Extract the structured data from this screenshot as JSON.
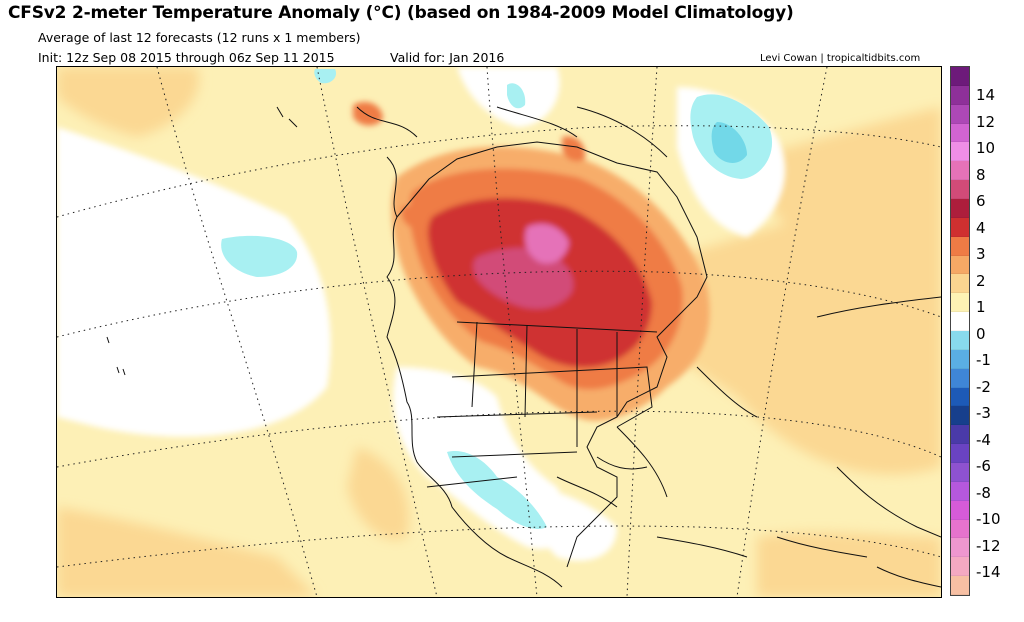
{
  "header": {
    "title": "CFSv2 2-meter Temperature Anomaly (°C) (based on 1984-2009 Model Climatology)",
    "subtitle": "Average of last 12 forecasts (12 runs x 1 members)",
    "init": "Init: 12z Sep 08 2015 through 06z Sep 11 2015",
    "valid": "Valid for: Jan 2016",
    "credit": "Levi Cowan | tropicaltidbits.com"
  },
  "map": {
    "region": "North America",
    "field": "2-meter temperature anomaly",
    "units": "°C"
  },
  "colorbar": {
    "swatches": [
      {
        "color": "#f7c0a4"
      },
      {
        "color": "#f4a9c2"
      },
      {
        "color": "#ee97cf"
      },
      {
        "color": "#e673cd"
      },
      {
        "color": "#d65bd8"
      },
      {
        "color": "#b558dd"
      },
      {
        "color": "#8e52d0"
      },
      {
        "color": "#6a43c2"
      },
      {
        "color": "#4a3aa8"
      },
      {
        "color": "#173f8c"
      },
      {
        "color": "#1d5ab7"
      },
      {
        "color": "#3f86d6"
      },
      {
        "color": "#5aaee4"
      },
      {
        "color": "#88d9ec"
      },
      {
        "color": "#ffffff"
      },
      {
        "color": "#fdf2b4"
      },
      {
        "color": "#fbd590"
      },
      {
        "color": "#f6a865"
      },
      {
        "color": "#ef7b45"
      },
      {
        "color": "#cf3030"
      },
      {
        "color": "#ad1e3c"
      },
      {
        "color": "#d24b78"
      },
      {
        "color": "#e572b8"
      },
      {
        "color": "#f08ee6"
      },
      {
        "color": "#d264d2"
      },
      {
        "color": "#ad48b6"
      },
      {
        "color": "#8e3099"
      },
      {
        "color": "#6d1a7a"
      }
    ],
    "labels": [
      {
        "text": "14",
        "value": 14
      },
      {
        "text": "12",
        "value": 12
      },
      {
        "text": "10",
        "value": 10
      },
      {
        "text": "8",
        "value": 8
      },
      {
        "text": "6",
        "value": 6
      },
      {
        "text": "4",
        "value": 4
      },
      {
        "text": "3",
        "value": 3
      },
      {
        "text": "2",
        "value": 2
      },
      {
        "text": "1",
        "value": 1
      },
      {
        "text": "0",
        "value": 0
      },
      {
        "text": "-1",
        "value": -1
      },
      {
        "text": "-2",
        "value": -2
      },
      {
        "text": "-3",
        "value": -3
      },
      {
        "text": "-4",
        "value": -4
      },
      {
        "text": "-6",
        "value": -6
      },
      {
        "text": "-8",
        "value": -8
      },
      {
        "text": "-10",
        "value": -10
      },
      {
        "text": "-12",
        "value": -12
      },
      {
        "text": "-14",
        "value": -14
      }
    ]
  }
}
